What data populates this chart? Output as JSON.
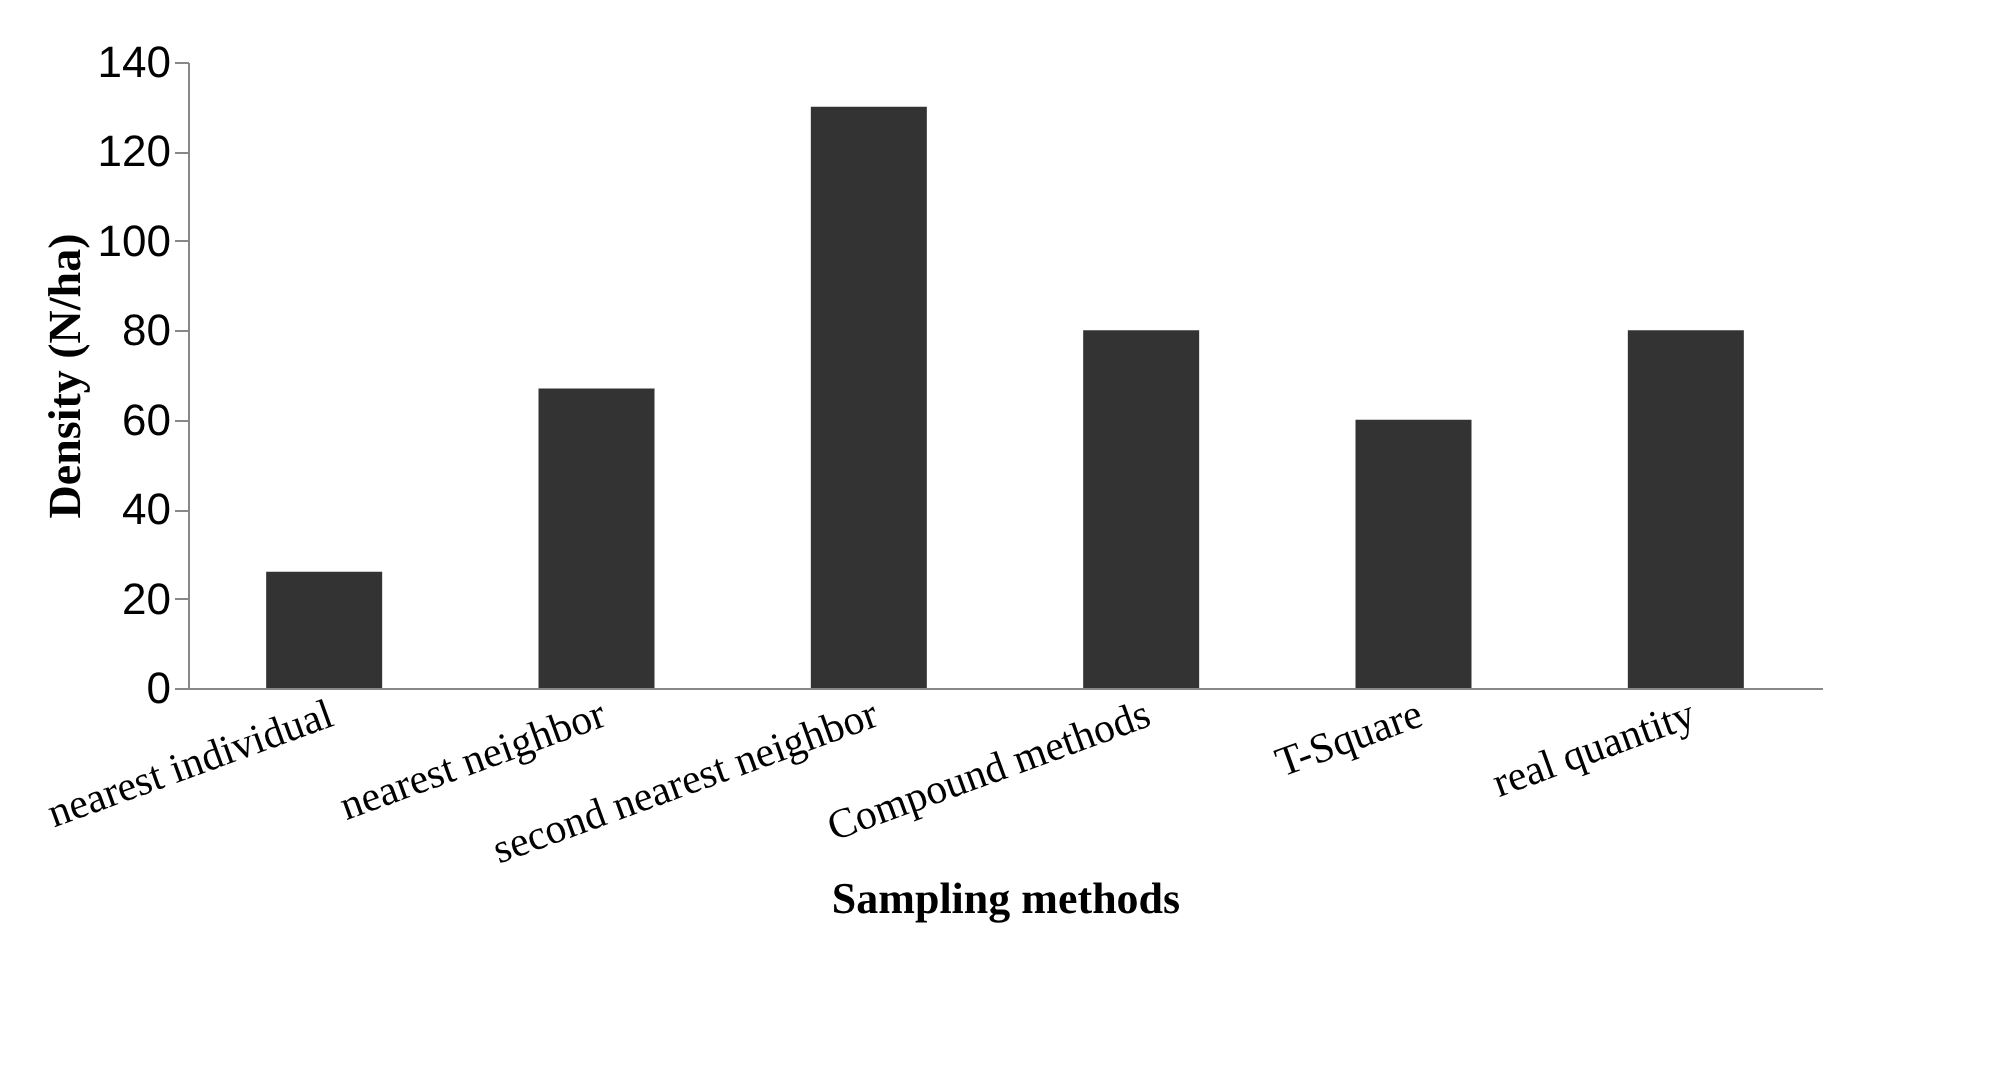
{
  "chart_data": {
    "type": "bar",
    "xlabel": "Sampling methods",
    "ylabel": "Density (N/ha)",
    "categories": [
      "nearest individual",
      "nearest neighbor",
      "second nearest neighbor",
      "Compound methods",
      "T-Square",
      "real quantity"
    ],
    "values": [
      26,
      67,
      130,
      80,
      60,
      80
    ],
    "color": "#333333",
    "ylim": [
      0,
      140
    ],
    "yticks": [
      0,
      20,
      40,
      60,
      80,
      100,
      120,
      140
    ],
    "grid": false
  }
}
